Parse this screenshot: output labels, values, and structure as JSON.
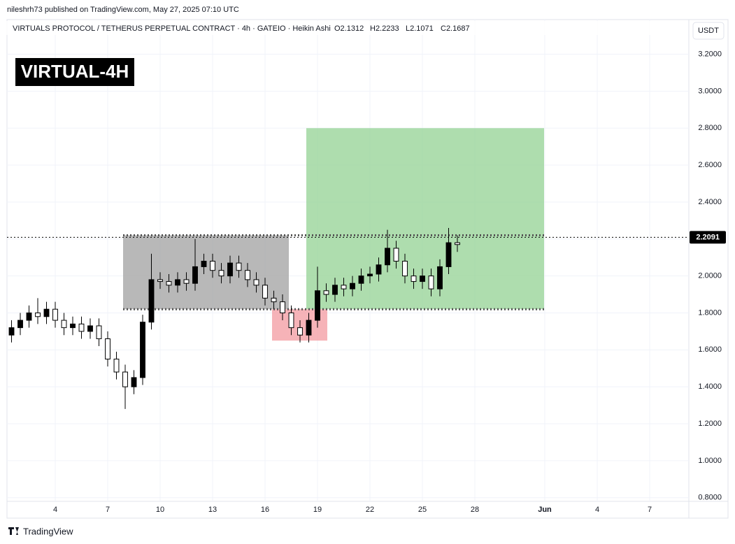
{
  "header": {
    "attribution": "nileshrh73 published on TradingView.com, May 27, 2025 07:10 UTC",
    "symbol": "VIRTUALS PROTOCOL / TETHERUS PERPETUAL CONTRACT · 4h · GATEIO · Heikin Ashi",
    "ohlc": [
      "O2.1312",
      "H2.2233",
      "L2.1071",
      "C2.1687"
    ],
    "badge": "VIRTUAL-4H",
    "currency": "USDT",
    "footer": "TradingView"
  },
  "chart_data": {
    "type": "candlestick",
    "x": [
      1.5,
      2.0,
      2.5,
      3.0,
      3.5,
      4.0,
      4.5,
      5.0,
      5.5,
      6.0,
      6.5,
      7.0,
      7.5,
      8.0,
      8.5,
      9.0,
      9.5,
      10.0,
      10.5,
      11.0,
      11.5,
      12.0,
      12.5,
      13.0,
      13.5,
      14.0,
      14.5,
      15.0,
      15.5,
      16.0,
      16.5,
      17.0,
      17.5,
      18.0,
      18.5,
      19.0,
      19.5,
      20.0,
      20.5,
      21.0,
      21.5,
      22.0,
      22.5,
      23.0,
      23.5,
      24.0,
      24.5,
      25.0,
      25.5,
      26.0,
      26.5,
      27.0
    ],
    "open": [
      1.68,
      1.72,
      1.76,
      1.8,
      1.78,
      1.82,
      1.76,
      1.72,
      1.74,
      1.7,
      1.73,
      1.66,
      1.55,
      1.48,
      1.4,
      1.45,
      1.75,
      1.98,
      1.97,
      1.95,
      1.98,
      1.96,
      2.05,
      2.08,
      2.03,
      2.0,
      2.07,
      2.03,
      1.98,
      1.95,
      1.88,
      1.86,
      1.8,
      1.72,
      1.68,
      1.76,
      1.92,
      1.9,
      1.95,
      1.93,
      1.96,
      2.0,
      2.01,
      2.06,
      2.15,
      2.08,
      2.0,
      1.97,
      2.0,
      1.93,
      2.05,
      2.18
    ],
    "high": [
      1.76,
      1.8,
      1.84,
      1.88,
      1.86,
      1.86,
      1.8,
      1.78,
      1.78,
      1.77,
      1.77,
      1.7,
      1.59,
      1.52,
      1.49,
      1.79,
      2.12,
      2.02,
      2.01,
      2.02,
      2.02,
      2.2,
      2.12,
      2.12,
      2.07,
      2.11,
      2.11,
      2.07,
      2.02,
      1.99,
      1.92,
      1.9,
      1.84,
      1.76,
      1.8,
      2.05,
      1.96,
      1.99,
      1.99,
      2.0,
      2.04,
      2.05,
      2.1,
      2.25,
      2.19,
      2.12,
      2.04,
      2.04,
      2.04,
      2.09,
      2.26,
      2.22
    ],
    "low": [
      1.64,
      1.68,
      1.72,
      1.74,
      1.74,
      1.72,
      1.68,
      1.68,
      1.66,
      1.66,
      1.62,
      1.51,
      1.44,
      1.28,
      1.36,
      1.41,
      1.71,
      1.93,
      1.91,
      1.91,
      1.92,
      1.92,
      2.01,
      1.99,
      1.96,
      1.96,
      1.99,
      1.94,
      1.91,
      1.84,
      1.82,
      1.76,
      1.68,
      1.64,
      1.64,
      1.72,
      1.86,
      1.86,
      1.89,
      1.89,
      1.92,
      1.96,
      1.97,
      2.02,
      2.04,
      1.96,
      1.93,
      1.93,
      1.89,
      1.89,
      2.01,
      2.13
    ],
    "close": [
      1.72,
      1.76,
      1.8,
      1.78,
      1.82,
      1.76,
      1.72,
      1.74,
      1.7,
      1.73,
      1.66,
      1.55,
      1.48,
      1.4,
      1.45,
      1.75,
      1.98,
      1.97,
      1.95,
      1.98,
      1.96,
      2.05,
      2.08,
      2.03,
      2.0,
      2.07,
      2.03,
      1.98,
      1.95,
      1.88,
      1.86,
      1.8,
      1.72,
      1.68,
      1.76,
      1.92,
      1.9,
      1.95,
      1.93,
      1.96,
      2.0,
      2.01,
      2.06,
      2.15,
      2.08,
      2.0,
      1.97,
      2.0,
      1.93,
      2.05,
      2.18,
      2.17
    ],
    "up_color": "#000000",
    "down_color": "#ffffff",
    "xlim": [
      1.24,
      40.24
    ],
    "xticks": [
      4,
      7,
      10,
      13,
      16,
      19,
      22,
      25,
      28,
      {
        "value": 32,
        "label": "Jun"
      },
      {
        "value": 35,
        "label": "4"
      },
      {
        "value": 38,
        "label": "7"
      }
    ],
    "ylim": [
      0.78,
      3.38
    ],
    "yticks": [
      {
        "value": 0.8,
        "label": "0.8000"
      },
      {
        "value": 1.0,
        "label": "1.0000"
      },
      {
        "value": 1.2,
        "label": "1.2000"
      },
      {
        "value": 1.4,
        "label": "1.4000"
      },
      {
        "value": 1.6,
        "label": "1.6000"
      },
      {
        "value": 1.8,
        "label": "1.8000"
      },
      {
        "value": 2.0,
        "label": "2.0000"
      },
      {
        "value": 2.2,
        "label": "2.2000"
      },
      {
        "value": 2.4,
        "label": "2.4000"
      },
      {
        "value": 2.6,
        "label": "2.6000"
      },
      {
        "value": 2.8,
        "label": "2.8000"
      },
      {
        "value": 3.0,
        "label": "3.0000"
      },
      {
        "value": 3.2,
        "label": "3.2000"
      }
    ],
    "grid": true,
    "zones": [
      {
        "x0": 7.88,
        "x1": 17.36,
        "y0": 1.82,
        "y1": 2.22,
        "color": "#a6a6a6"
      },
      {
        "x0": 18.36,
        "x1": 31.96,
        "y0": 1.82,
        "y1": 2.8,
        "color": "#9ad49a"
      },
      {
        "x0": 16.4,
        "x1": 19.56,
        "y0": 1.65,
        "y1": 1.82,
        "color": "#f4a0a6"
      }
    ],
    "levels": [
      {
        "value": 2.22,
        "x0": 7.88,
        "x1": 31.96
      },
      {
        "value": 1.82,
        "x0": 7.88,
        "x1": 31.96
      }
    ],
    "last_price": 2.2091
  }
}
